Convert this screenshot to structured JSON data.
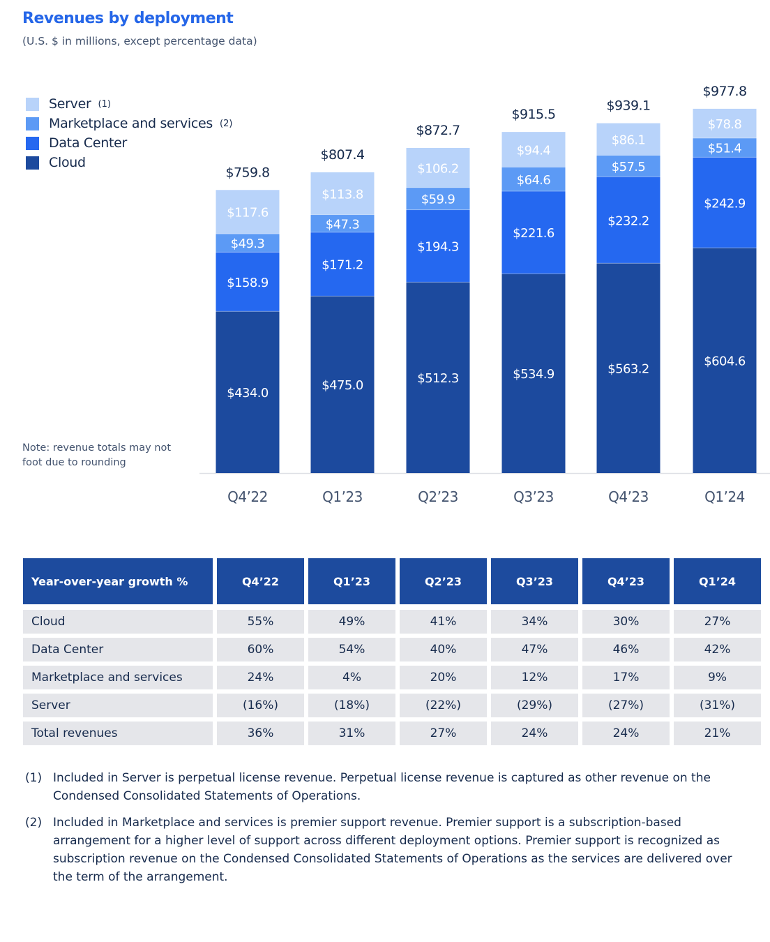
{
  "header": {
    "title": "Revenues by deployment",
    "subtitle": "(U.S. $ in millions, except percentage data)"
  },
  "legend": [
    {
      "label": "Server",
      "note": "(1)",
      "color": "#b8d3fa"
    },
    {
      "label": "Marketplace and services",
      "note": "(2)",
      "color": "#5c9af5"
    },
    {
      "label": "Data Center",
      "note": "",
      "color": "#2568f0"
    },
    {
      "label": "Cloud",
      "note": "",
      "color": "#1c4a9e"
    }
  ],
  "note": "Note: revenue totals may not foot due to rounding",
  "chart_data": {
    "type": "bar",
    "stacked": true,
    "title": "Revenues by deployment",
    "subtitle": "(U.S. $ in millions, except percentage data)",
    "xlabel": "",
    "ylabel": "",
    "ylim": [
      0,
      1000
    ],
    "grid": false,
    "legend_position": "top-left",
    "categories": [
      "Q4’22",
      "Q1’23",
      "Q2’23",
      "Q3’23",
      "Q4’23",
      "Q1’24"
    ],
    "series": [
      {
        "name": "Cloud",
        "color": "#1c4a9e",
        "values": [
          434.0,
          475.0,
          512.3,
          534.9,
          563.2,
          604.6
        ],
        "labels": [
          "$434.0",
          "$475.0",
          "$512.3",
          "$534.9",
          "$563.2",
          "$604.6"
        ]
      },
      {
        "name": "Data Center",
        "color": "#2568f0",
        "values": [
          158.9,
          171.2,
          194.3,
          221.6,
          232.2,
          242.9
        ],
        "labels": [
          "$158.9",
          "$171.2",
          "$194.3",
          "$221.6",
          "$232.2",
          "$242.9"
        ]
      },
      {
        "name": "Marketplace and services",
        "color": "#5c9af5",
        "values": [
          49.3,
          47.3,
          59.9,
          64.6,
          57.5,
          51.4
        ],
        "labels": [
          "$49.3",
          "$47.3",
          "$59.9",
          "$64.6",
          "$57.5",
          "$51.4"
        ]
      },
      {
        "name": "Server",
        "color": "#b8d3fa",
        "values": [
          117.6,
          113.8,
          106.2,
          94.4,
          86.1,
          78.8
        ],
        "labels": [
          "$117.6",
          "$113.8",
          "$106.2",
          "$94.4",
          "$86.1",
          "$78.8"
        ]
      }
    ],
    "totals": [
      759.8,
      807.4,
      872.7,
      915.5,
      939.1,
      977.8
    ],
    "total_labels": [
      "$759.8",
      "$807.4",
      "$872.7",
      "$915.5",
      "$939.1",
      "$977.8"
    ]
  },
  "table": {
    "header": [
      "Year-over-year growth %",
      "Q4’22",
      "Q1’23",
      "Q2’23",
      "Q3’23",
      "Q4’23",
      "Q1’24"
    ],
    "rows": [
      [
        "Cloud",
        "55%",
        "49%",
        "41%",
        "34%",
        "30%",
        "27%"
      ],
      [
        "Data Center",
        "60%",
        "54%",
        "40%",
        "47%",
        "46%",
        "42%"
      ],
      [
        "Marketplace and services",
        "24%",
        "4%",
        "20%",
        "12%",
        "17%",
        "9%"
      ],
      [
        "Server",
        "(16%)",
        "(18%)",
        "(22%)",
        "(29%)",
        "(27%)",
        "(31%)"
      ],
      [
        "Total revenues",
        "36%",
        "31%",
        "27%",
        "24%",
        "24%",
        "21%"
      ]
    ]
  },
  "footnotes": [
    {
      "num": "(1)",
      "text": "Included in Server is perpetual license revenue. Perpetual license revenue is captured as other revenue on the Condensed Consolidated Statements of Operations."
    },
    {
      "num": "(2)",
      "text": "Included in Marketplace and services is premier support revenue. Premier support is a subscription-based arrangement for a higher level of support across different deployment options. Premier support is recognized as subscription revenue on the Condensed Consolidated Statements of Operations as the services are delivered over the term of the arrangement."
    }
  ]
}
